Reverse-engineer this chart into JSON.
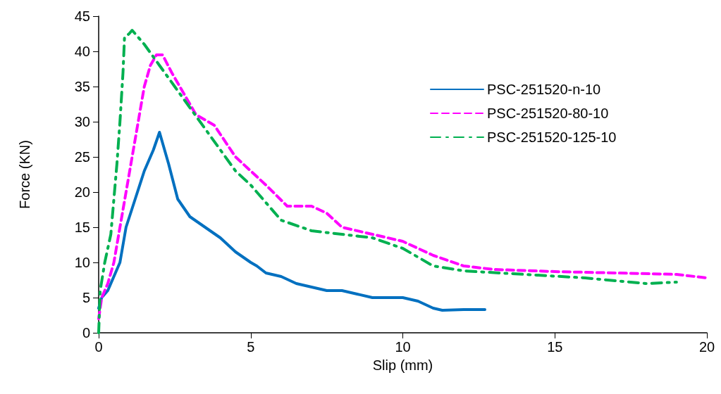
{
  "chart_data": {
    "type": "line",
    "xlabel": "Slip (mm)",
    "ylabel": "Force (KN)",
    "xlim": [
      0,
      20
    ],
    "xticks": [
      0,
      5,
      10,
      15,
      20
    ],
    "ylim": [
      0,
      45
    ],
    "yticks": [
      0,
      5,
      10,
      15,
      20,
      25,
      30,
      35,
      40,
      45
    ],
    "grid": false,
    "legend": "top right",
    "marker": "none",
    "series": [
      {
        "name": "PSC-251520-n-10",
        "color": "#0070c0",
        "line_style": "solid",
        "x": [
          0,
          0.1,
          0.3,
          0.5,
          0.7,
          0.9,
          1.2,
          1.5,
          1.8,
          2.0,
          2.3,
          2.6,
          3,
          3.5,
          4,
          4.5,
          5,
          5.2,
          5.5,
          6,
          6.5,
          7,
          7.5,
          8,
          8.5,
          9,
          10,
          10.5,
          11,
          11.3,
          12,
          12.7
        ],
        "values": [
          3.5,
          5,
          6,
          8,
          10,
          15,
          19,
          23,
          26,
          28.5,
          24,
          19,
          16.5,
          15,
          13.5,
          11.5,
          10,
          9.5,
          8.5,
          8,
          7,
          6.5,
          6,
          6,
          5.5,
          5,
          5,
          4.5,
          3.5,
          3.2,
          3.3,
          3.3
        ]
      },
      {
        "name": "PSC-251520-80-10",
        "color": "#ff00ff",
        "line_style": "dashed",
        "x": [
          0,
          0.1,
          0.3,
          0.5,
          0.7,
          0.9,
          1.1,
          1.3,
          1.5,
          1.7,
          1.9,
          2.1,
          2.4,
          2.8,
          3.2,
          3.8,
          4.5,
          5.5,
          6.2,
          7,
          7.5,
          8,
          9,
          10,
          11,
          12,
          13,
          15,
          17,
          19,
          20
        ],
        "values": [
          2,
          5,
          7,
          10,
          15,
          20,
          25,
          30,
          35,
          38,
          39.5,
          39.5,
          37,
          34,
          31,
          29.5,
          25,
          21,
          18,
          18,
          17,
          15,
          14,
          13,
          11,
          9.5,
          9,
          8.7,
          8.5,
          8.3,
          7.8
        ]
      },
      {
        "name": "PSC-251520-125-10",
        "color": "#00b050",
        "line_style": "dashdot",
        "x": [
          0,
          0.05,
          0.2,
          0.4,
          0.6,
          0.7,
          0.8,
          0.85,
          1.0,
          1.1,
          1.5,
          2,
          2.5,
          3,
          3.5,
          4,
          4.5,
          5,
          6,
          7,
          8,
          9,
          10,
          11,
          12,
          14,
          16,
          18,
          19
        ],
        "values": [
          0,
          6,
          10,
          14,
          24,
          30,
          37,
          42,
          42.5,
          43,
          41,
          38,
          35,
          32,
          29,
          26,
          23,
          21,
          16,
          14.5,
          14,
          13.5,
          12,
          9.5,
          8.8,
          8.3,
          7.8,
          7,
          7.2
        ]
      }
    ]
  }
}
